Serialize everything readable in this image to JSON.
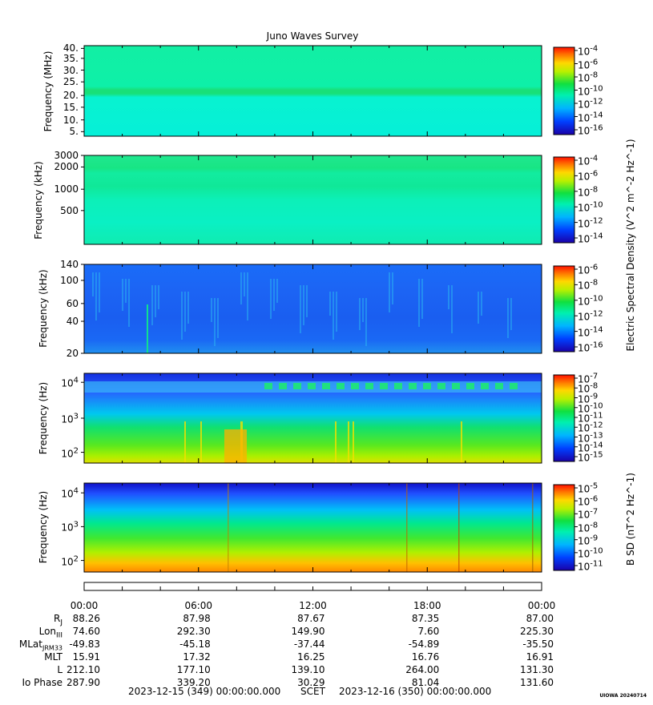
{
  "title": "Juno Waves Survey",
  "stamp": "UIOWA 20240714",
  "colors": {
    "frame": "#000000",
    "background": "#ffffff"
  },
  "chart_data": [
    {
      "type": "heatmap",
      "ylabel": "Frequency (MHz)",
      "yticks": [
        "40.",
        "35.",
        "30.",
        "25.",
        "20.",
        "15.",
        "10.",
        "5."
      ],
      "scale": "linear",
      "colorbar_ticks": [
        "10^-4",
        "10^-6",
        "10^-8",
        "10^-10",
        "10^-12",
        "10^-14",
        "10^-16"
      ],
      "dominant_level": "cyan-green (~10^-13)",
      "band_note": "brighter green band near 20–22 MHz"
    },
    {
      "type": "heatmap",
      "ylabel": "Frequency (kHz)",
      "yticks": [
        "3000",
        "2000",
        "1000",
        "500"
      ],
      "scale": "log",
      "colorbar_ticks": [
        "10^-4",
        "10^-6",
        "10^-8",
        "10^-10",
        "10^-12",
        "10^-14"
      ],
      "shared_colorbar_label": "Electric Spectral Density (V^2 m^-2 Hz^-1)",
      "dominant_level": "cyan-green (~10^-12)"
    },
    {
      "type": "heatmap",
      "ylabel": "Frequency (kHz)",
      "yticks": [
        "140",
        "100",
        "60",
        "40",
        "20"
      ],
      "scale": "log",
      "colorbar_ticks": [
        "10^-6",
        "10^-8",
        "10^-10",
        "10^-12",
        "10^-14",
        "10^-16"
      ],
      "dominant_level": "blue (~10^-14)"
    },
    {
      "type": "heatmap",
      "ylabel": "Frequency (Hz)",
      "yticks": [
        "10^4",
        "10^3",
        "10^2"
      ],
      "scale": "log",
      "colorbar_ticks": [
        "10^-7",
        "10^-8",
        "10^-9",
        "10^-10",
        "10^-11",
        "10^-12",
        "10^-13",
        "10^-14",
        "10^-15"
      ],
      "dominant_level": "blue at top, green/yellow at low frequencies"
    },
    {
      "type": "heatmap",
      "ylabel": "Frequency (Hz)",
      "yticks": [
        "10^4",
        "10^3",
        "10^2"
      ],
      "scale": "log",
      "colorbar_ticks": [
        "10^-5",
        "10^-6",
        "10^-7",
        "10^-8",
        "10^-9",
        "10^-10",
        "10^-11"
      ],
      "colorbar_label": "B SD (nT^2 Hz^-1)",
      "dominant_level": "blue at top, green, yellow-orange at bottom"
    }
  ],
  "time_axis": {
    "ticks": [
      "00:00",
      "06:00",
      "12:00",
      "18:00",
      "00:00"
    ],
    "rows": [
      {
        "label": "R_J",
        "values": [
          "88.26",
          "87.98",
          "87.67",
          "87.35",
          "87.00"
        ]
      },
      {
        "label": "Lon_III",
        "values": [
          "74.60",
          "292.30",
          "149.90",
          "7.60",
          "225.30"
        ]
      },
      {
        "label": "MLat_JRM33",
        "values": [
          "-49.83",
          "-45.18",
          "-37.44",
          "-54.89",
          "-35.50"
        ]
      },
      {
        "label": "MLT",
        "values": [
          "15.91",
          "17.32",
          "16.25",
          "16.76",
          "16.91"
        ]
      },
      {
        "label": "L",
        "values": [
          "212.10",
          "177.10",
          "139.10",
          "264.00",
          "131.30"
        ]
      },
      {
        "label": "Io Phase",
        "values": [
          "287.90",
          "339.20",
          "30.29",
          "81.04",
          "131.60"
        ]
      }
    ],
    "start": "2023-12-15 (349) 00:00:00.000",
    "scet": "SCET",
    "end": "2023-12-16 (350) 00:00:00.000"
  }
}
